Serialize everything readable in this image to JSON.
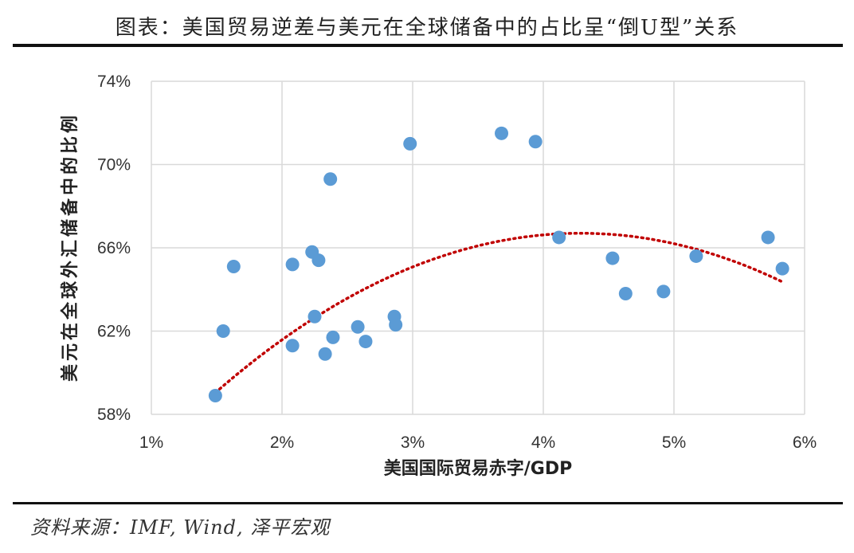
{
  "header": {
    "title": "图表：美国贸易逆差与美元在全球储备中的占比呈“倒U型”关系"
  },
  "footer": {
    "source": "资料来源：IMF, Wind, 泽平宏观"
  },
  "chart_data": {
    "type": "scatter",
    "title": "图表：美国贸易逆差与美元在全球储备中的占比呈“倒U型”关系",
    "xlabel": "美国国际贸易赤字/GDP",
    "ylabel": "美元在全球外汇储备中的比例",
    "xlim": [
      1,
      6
    ],
    "ylim": [
      58,
      74
    ],
    "x_ticks": [
      1,
      2,
      3,
      4,
      5,
      6
    ],
    "x_tick_labels": [
      "1%",
      "2%",
      "3%",
      "4%",
      "5%",
      "6%"
    ],
    "y_ticks": [
      58,
      62,
      66,
      70,
      74
    ],
    "y_tick_labels": [
      "58%",
      "62%",
      "66%",
      "70%",
      "74%"
    ],
    "grid": true,
    "colors": {
      "points": "#5b9bd5",
      "trend": "#c00000",
      "grid": "#d9d9d9"
    },
    "series": [
      {
        "name": "points",
        "points": [
          {
            "x": 1.49,
            "y": 58.9
          },
          {
            "x": 1.55,
            "y": 62.0
          },
          {
            "x": 1.63,
            "y": 65.1
          },
          {
            "x": 2.08,
            "y": 65.2
          },
          {
            "x": 2.08,
            "y": 61.3
          },
          {
            "x": 2.23,
            "y": 65.8
          },
          {
            "x": 2.25,
            "y": 62.7
          },
          {
            "x": 2.28,
            "y": 65.4
          },
          {
            "x": 2.33,
            "y": 60.9
          },
          {
            "x": 2.37,
            "y": 69.3
          },
          {
            "x": 2.39,
            "y": 61.7
          },
          {
            "x": 2.58,
            "y": 62.2
          },
          {
            "x": 2.64,
            "y": 61.5
          },
          {
            "x": 2.86,
            "y": 62.7
          },
          {
            "x": 2.87,
            "y": 62.3
          },
          {
            "x": 2.98,
            "y": 71.0
          },
          {
            "x": 3.68,
            "y": 71.5
          },
          {
            "x": 3.94,
            "y": 71.1
          },
          {
            "x": 4.12,
            "y": 66.5
          },
          {
            "x": 4.53,
            "y": 65.5
          },
          {
            "x": 4.63,
            "y": 63.8
          },
          {
            "x": 4.92,
            "y": 63.9
          },
          {
            "x": 5.17,
            "y": 65.6
          },
          {
            "x": 5.72,
            "y": 66.5
          },
          {
            "x": 5.83,
            "y": 65.0
          }
        ]
      }
    ],
    "trendline": {
      "type": "polynomial",
      "degree": 2,
      "x_range": [
        1.49,
        5.83
      ],
      "coefficients": [
        -0.98,
        8.4,
        48.7
      ]
    }
  }
}
